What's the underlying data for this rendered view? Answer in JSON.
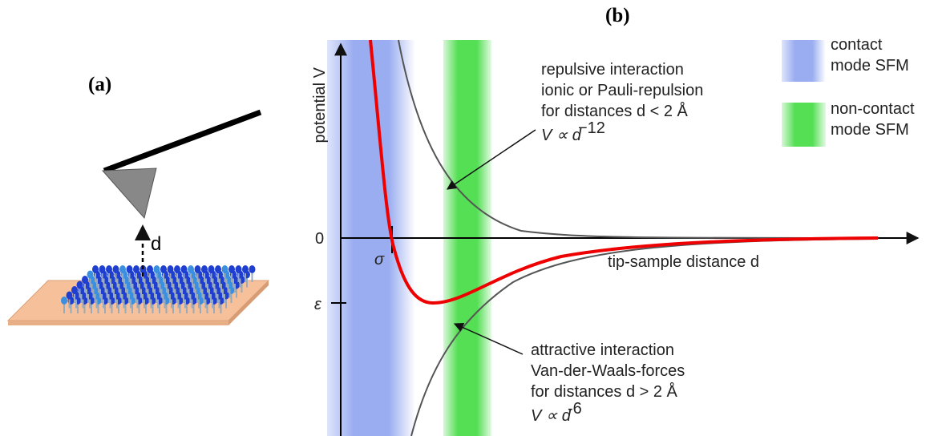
{
  "panel_a": {
    "label": "(a)",
    "distance_label": "d"
  },
  "panel_b": {
    "label": "(b)",
    "y_axis_label": "potential V",
    "x_axis_label": "tip-sample distance d",
    "zero_label": "0",
    "epsilon_label": "ε",
    "sigma_label": "σ",
    "legend": [
      {
        "lines": [
          "contact",
          "mode SFM"
        ]
      },
      {
        "lines": [
          "non-contact",
          "mode SFM"
        ]
      }
    ],
    "repulsive": {
      "lines": [
        "repulsive interaction",
        "ionic or Pauli-repulsion",
        "for distances d < 2 Å"
      ],
      "formula": "V ∝ d",
      "exponent": "−12"
    },
    "attractive": {
      "lines": [
        "attractive interaction",
        "Van-der-Waals-forces",
        "for distances d > 2 Å"
      ],
      "formula": "V ∝ d",
      "exponent": "-6"
    }
  }
}
